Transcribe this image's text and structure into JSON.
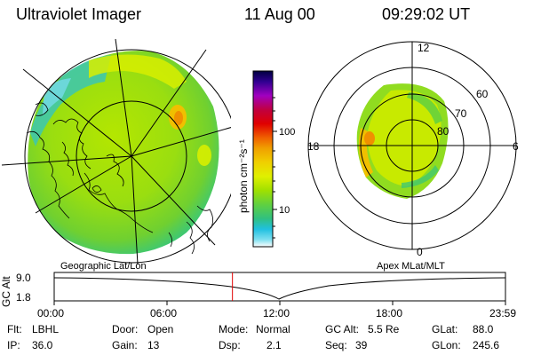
{
  "header": {
    "title": "Ultraviolet Imager",
    "date": "11 Aug 00",
    "time": "09:29:02 UT"
  },
  "colorbar": {
    "unit_label": "photon cm⁻²s⁻¹",
    "tick_100": "100",
    "tick_10": "10",
    "colors": [
      "#000040",
      "#300090",
      "#a000c0",
      "#c00040",
      "#e00000",
      "#f06000",
      "#f0a000",
      "#f0d000",
      "#e0f000",
      "#a0e000",
      "#60d040",
      "#30c080",
      "#20c0e0",
      "#80e0f0",
      "#ffffff"
    ]
  },
  "polar_plot": {
    "label_top": "12",
    "label_bottom": "0",
    "label_left": "18",
    "label_right": "6",
    "ring_60": "60",
    "ring_70": "70",
    "ring_80": "80"
  },
  "timeline": {
    "y_axis_title": "GC Alt",
    "y_top": "9.0",
    "y_bottom": "1.8",
    "left_caption": "Geographic Lat/Lon",
    "right_caption": "Apex MLat/MLT",
    "ticks": [
      "00:00",
      "06:00",
      "12:00",
      "18:00",
      "23:59"
    ],
    "current_fraction": 0.395
  },
  "info": {
    "flt_label": "Flt:",
    "flt_value": "LBHL",
    "ip_label": "IP:",
    "ip_value": "36.0",
    "door_label": "Door:",
    "door_value": "Open",
    "gain_label": "Gain:",
    "gain_value": "13",
    "mode_label": "Mode:",
    "mode_value": "Normal",
    "dsp_label": "Dsp:",
    "dsp_value": "2.1",
    "gcalt_label": "GC Alt:",
    "gcalt_value": "5.5 Re",
    "seq_label": "Seq:",
    "seq_value": "39",
    "glat_label": "GLat:",
    "glat_value": "88.0",
    "glon_label": "GLon:",
    "glon_value": "245.6"
  }
}
